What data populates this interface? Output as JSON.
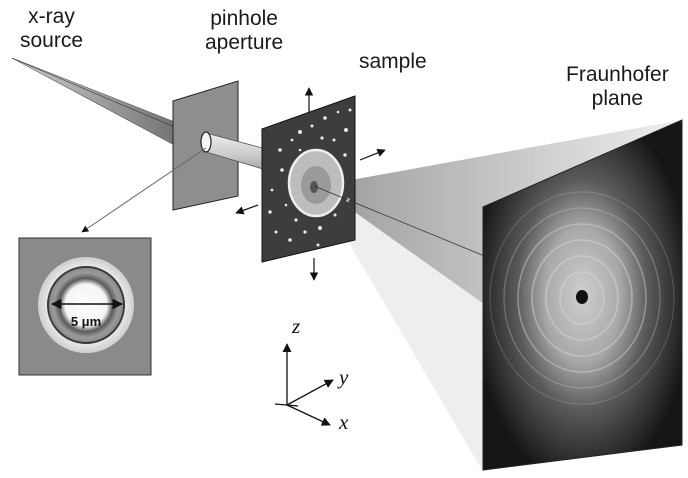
{
  "labels": {
    "source_line1": "x-ray",
    "source_line2": "source",
    "pinhole_line1": "pinhole",
    "pinhole_line2": "aperture",
    "sample": "sample",
    "fraunhofer_line1": "Fraunhofer",
    "fraunhofer_line2": "plane",
    "scale": "5 μm"
  },
  "axes": {
    "z": "z",
    "y": "y",
    "x": "x"
  },
  "colors": {
    "background": "#ffffff",
    "aperture_plate": "#8c8c8c",
    "sample_plate": "#3a3a3a",
    "detector": "#111111",
    "beam_cone": "#7a7a7a",
    "fan": "#d9d9d9"
  },
  "icons": [
    "arrow-up-icon",
    "arrow-down-icon",
    "arrow-left-icon",
    "arrow-right-icon"
  ]
}
